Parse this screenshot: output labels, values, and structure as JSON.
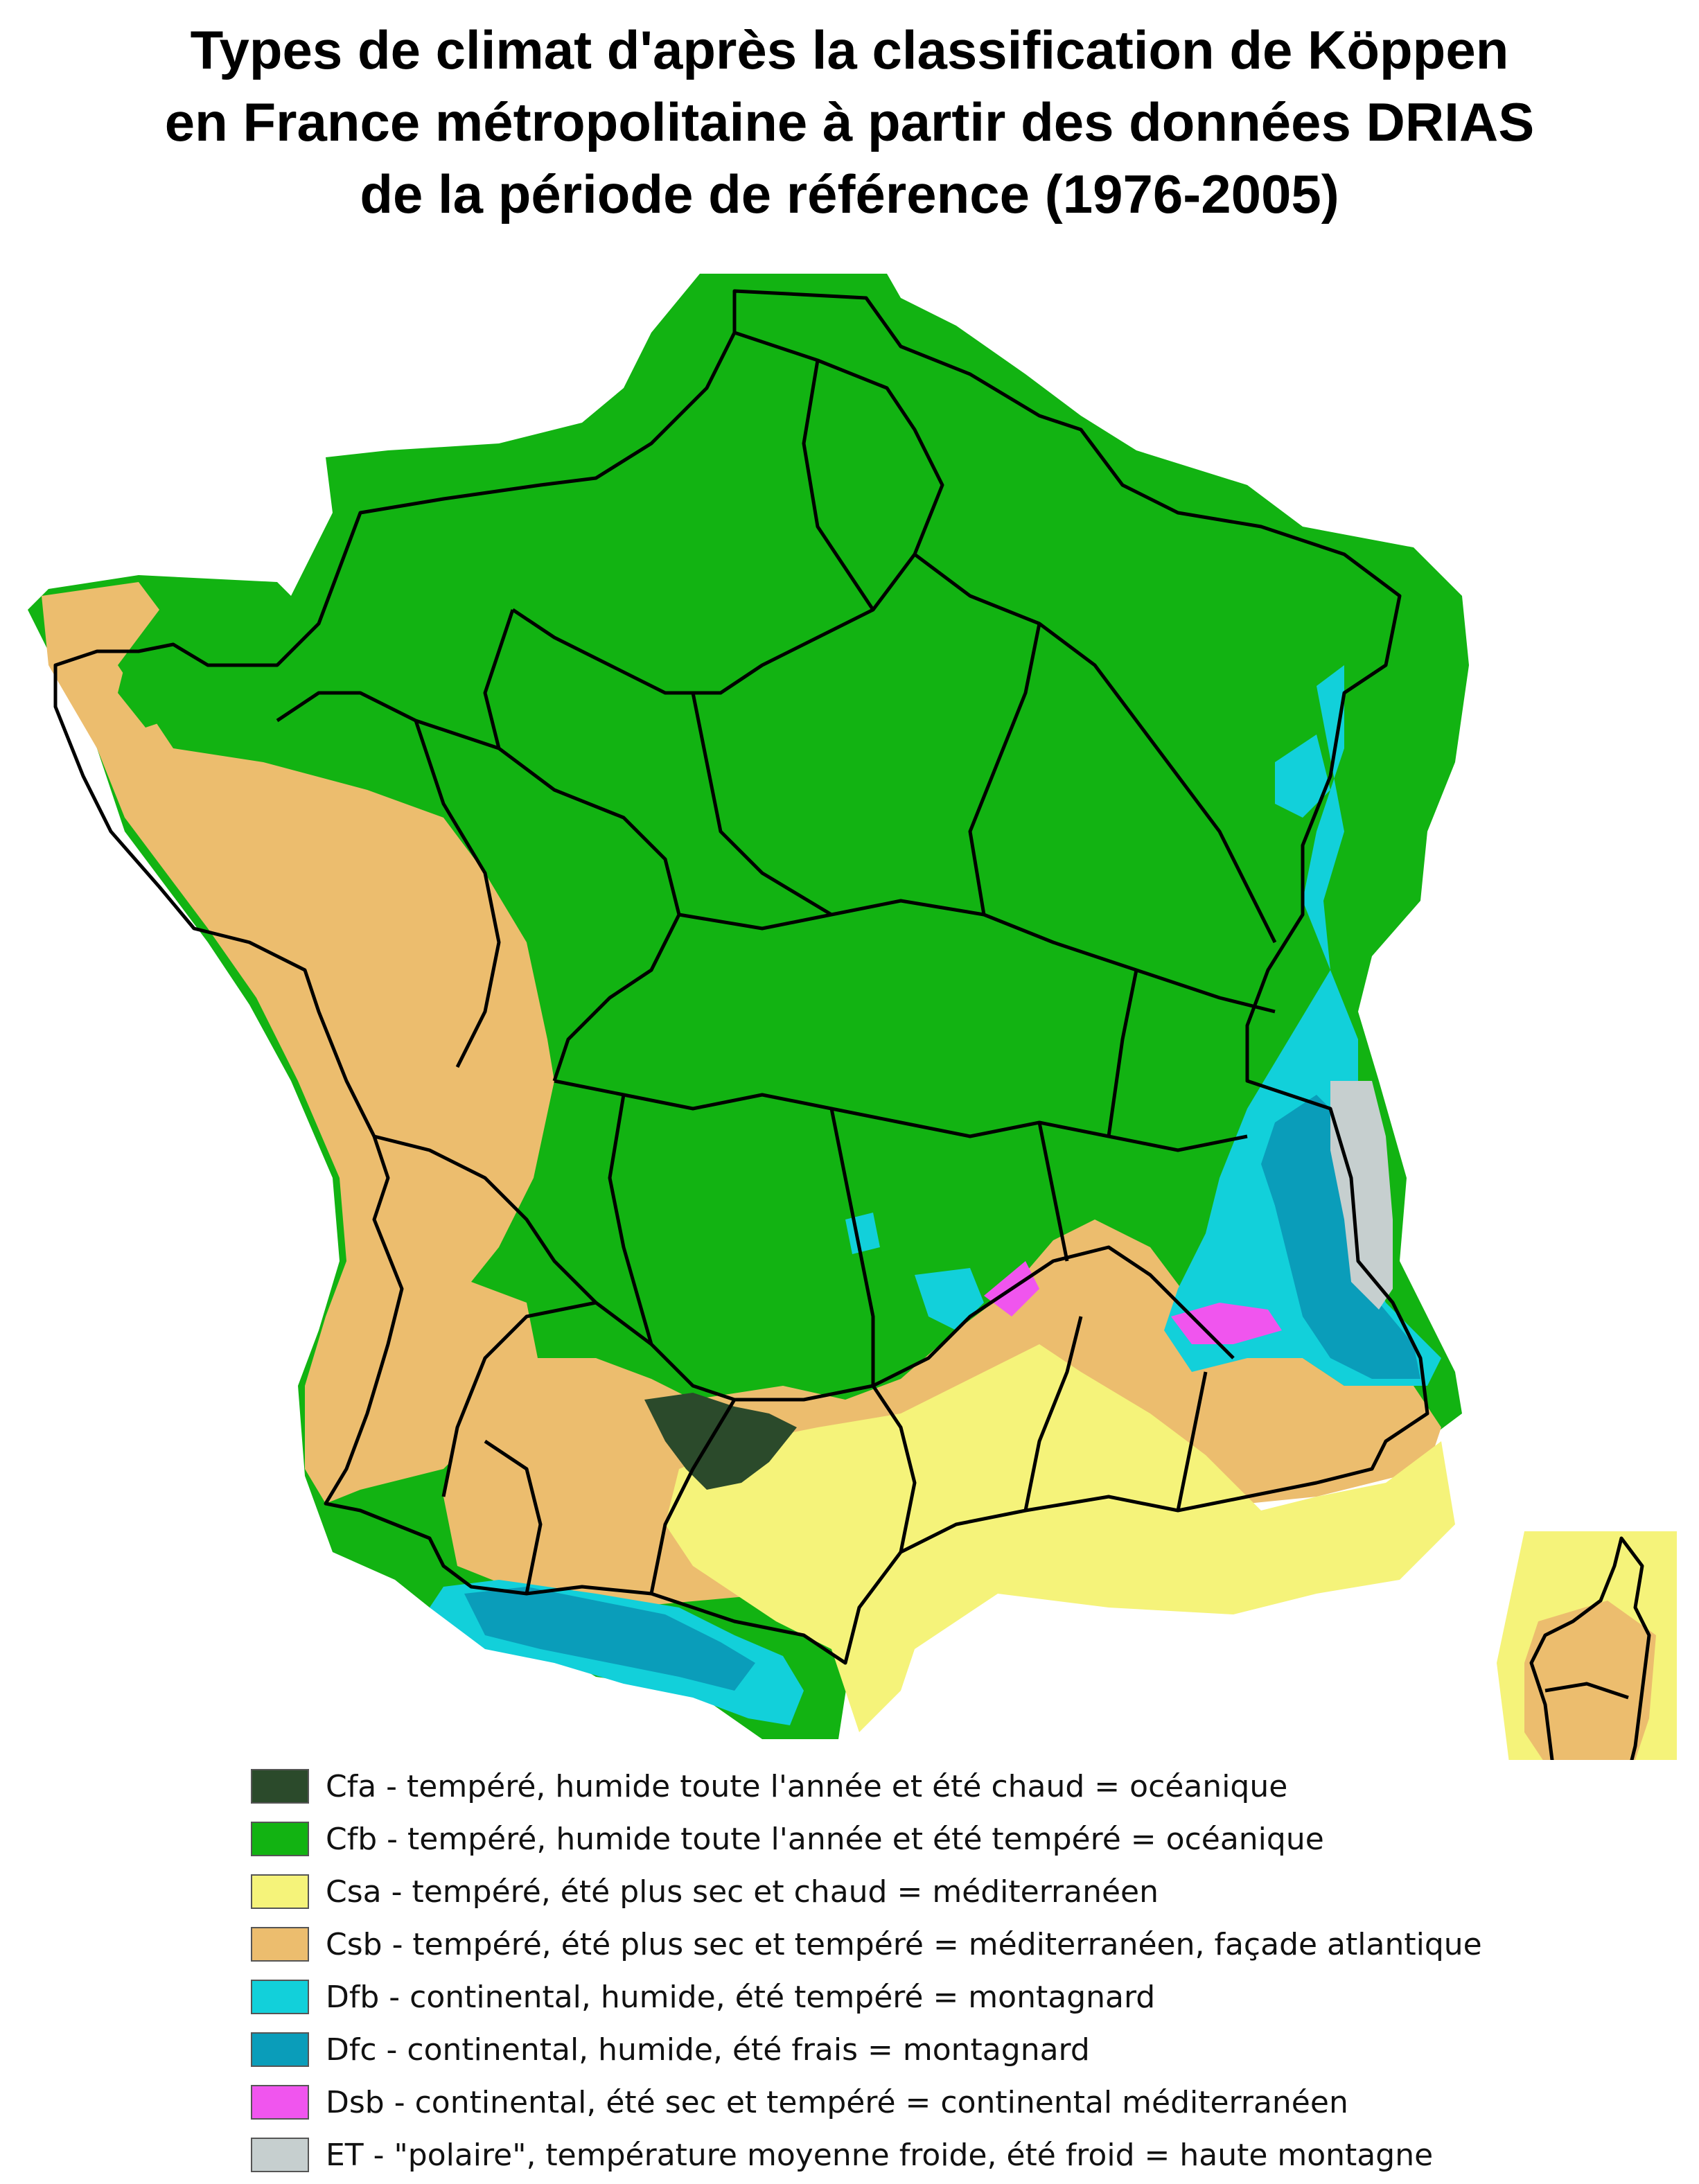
{
  "title": {
    "line1": "Types de climat d'après la classification de Köppen",
    "line2": "en France métropolitaine à partir des données DRIAS",
    "line3": "de la période de référence (1976-2005)"
  },
  "legend": {
    "items": [
      {
        "code": "Cfa",
        "label": "Cfa - tempéré, humide toute l'année et été chaud  = océanique",
        "color": "#2b4a2b"
      },
      {
        "code": "Cfb",
        "label": "Cfb - tempéré, humide toute l'année et été tempéré = océanique",
        "color": "#12b312"
      },
      {
        "code": "Csa",
        "label": "Csa - tempéré, été plus sec et chaud = méditerranéen",
        "color": "#f5f37a"
      },
      {
        "code": "Csb",
        "label": "Csb - tempéré, été plus sec et tempéré = méditerranéen, façade atlantique",
        "color": "#ecbd6e"
      },
      {
        "code": "Dfb",
        "label": "Dfb - continental, humide, été tempéré = montagnard",
        "color": "#12d0da"
      },
      {
        "code": "Dfc",
        "label": "Dfc - continental, humide, été frais = montagnard",
        "color": "#0a9dba"
      },
      {
        "code": "Dsb",
        "label": "Dsb - continental, été sec et tempéré = continental méditerranéen",
        "color": "#f055ee"
      },
      {
        "code": "ET",
        "label": "ET - \"polaire\", température moyenne froide, été froid = haute montagne",
        "color": "#c6cfcf"
      }
    ]
  }
}
